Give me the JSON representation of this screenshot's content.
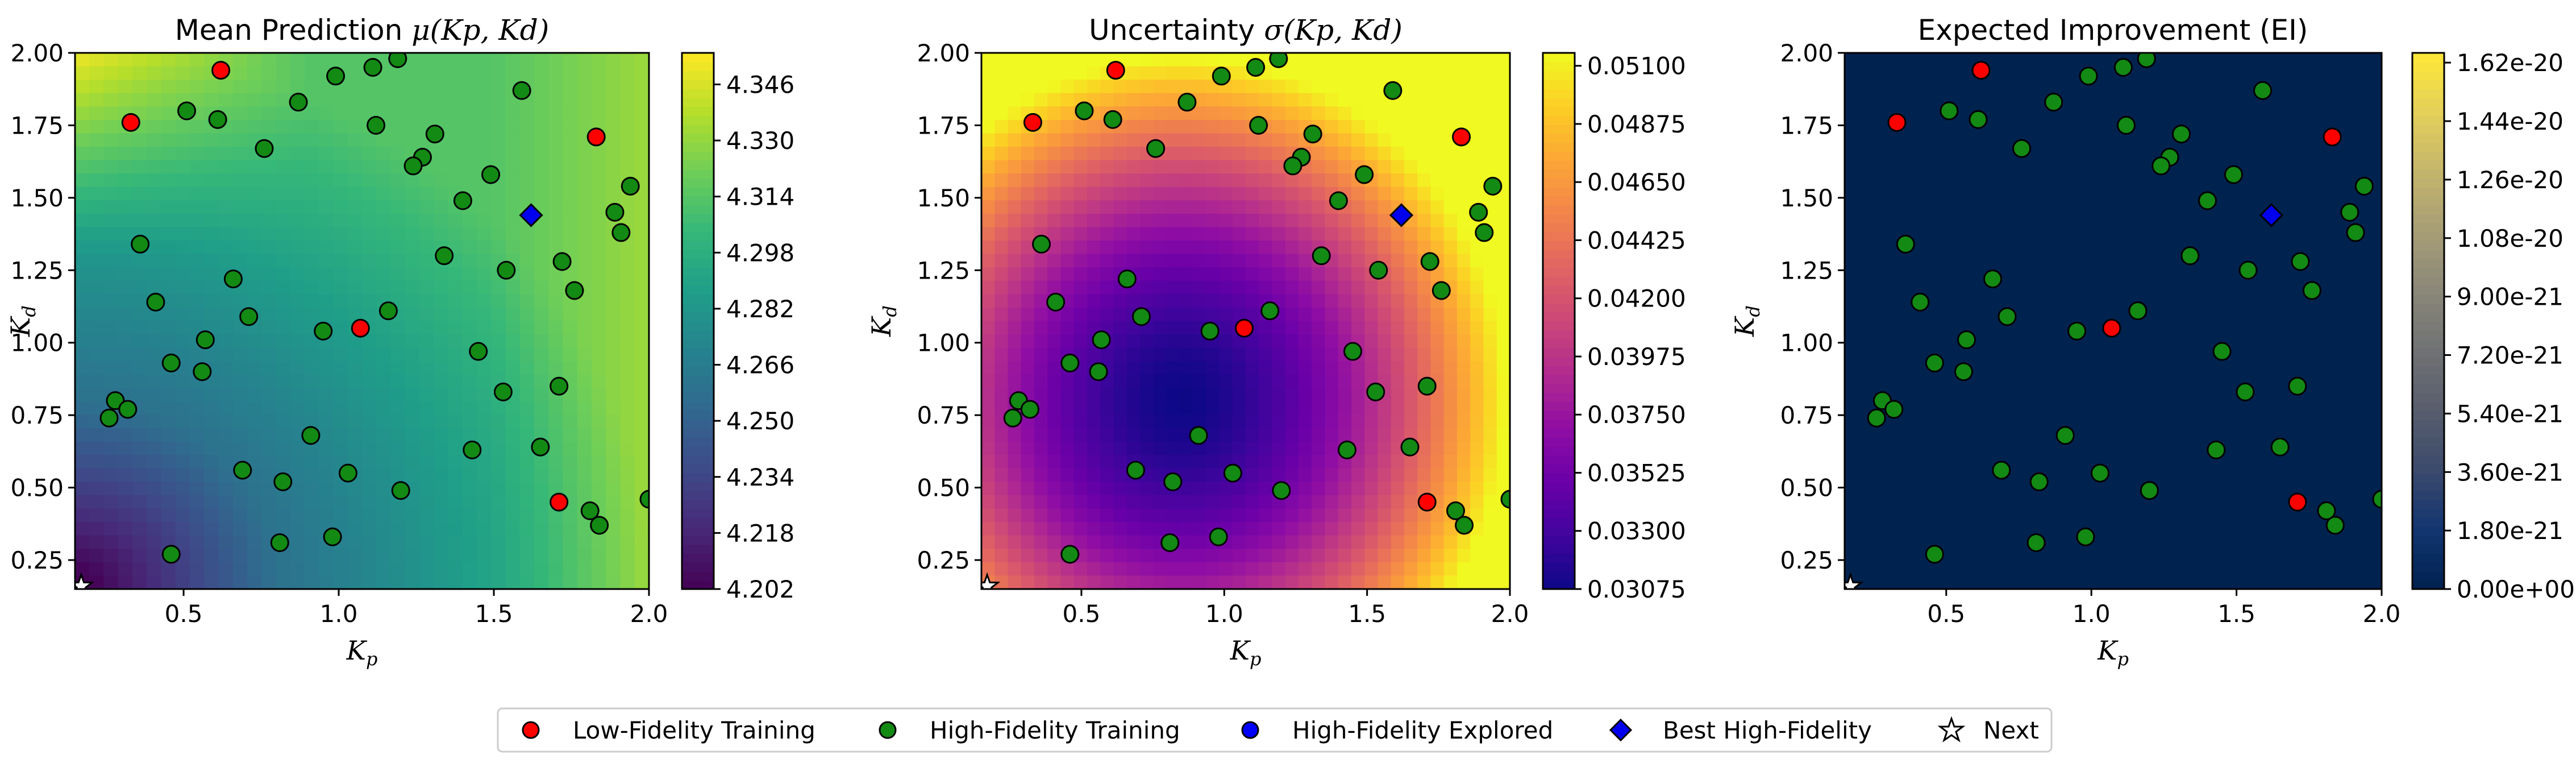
{
  "chart_data": [
    {
      "type": "heatmap",
      "title": "Mean Prediction",
      "title_math": "μ(Kp, Kd)",
      "xlabel": "K",
      "xlabel_sub": "p",
      "ylabel": "K",
      "ylabel_sub": "d",
      "xlim": [
        0.15,
        2.0
      ],
      "ylim": [
        0.15,
        2.0
      ],
      "xticks": [
        "0.5",
        "1.0",
        "1.5",
        "2.0"
      ],
      "yticks": [
        "0.25",
        "0.50",
        "0.75",
        "1.00",
        "1.25",
        "1.50",
        "1.75",
        "2.00"
      ],
      "colormap": "viridis",
      "color_range": [
        4.202,
        4.355
      ],
      "colorbar_ticks": [
        "4.202",
        "4.218",
        "4.234",
        "4.250",
        "4.266",
        "4.282",
        "4.298",
        "4.314",
        "4.330",
        "4.346"
      ],
      "grid": false
    },
    {
      "type": "heatmap",
      "title": "Uncertainty",
      "title_math": "σ(Kp, Kd)",
      "xlabel": "K",
      "xlabel_sub": "p",
      "ylabel": "K",
      "ylabel_sub": "d",
      "xlim": [
        0.15,
        2.0
      ],
      "ylim": [
        0.15,
        2.0
      ],
      "xticks": [
        "0.5",
        "1.0",
        "1.5",
        "2.0"
      ],
      "yticks": [
        "0.25",
        "0.50",
        "0.75",
        "1.00",
        "1.25",
        "1.50",
        "1.75",
        "2.00"
      ],
      "colormap": "plasma",
      "color_range": [
        0.03075,
        0.0515
      ],
      "colorbar_ticks": [
        "0.03075",
        "0.03300",
        "0.03525",
        "0.03750",
        "0.03975",
        "0.04200",
        "0.04425",
        "0.04650",
        "0.04875",
        "0.05100"
      ],
      "grid": false
    },
    {
      "type": "heatmap",
      "title": "Expected Improvement (EI)",
      "xlabel": "K",
      "xlabel_sub": "p",
      "ylabel": "K",
      "ylabel_sub": "d",
      "xlim": [
        0.15,
        2.0
      ],
      "ylim": [
        0.15,
        2.0
      ],
      "xticks": [
        "0.5",
        "1.0",
        "1.5",
        "2.0"
      ],
      "yticks": [
        "0.25",
        "0.50",
        "0.75",
        "1.00",
        "1.25",
        "1.50",
        "1.75",
        "2.00"
      ],
      "colormap": "cividis",
      "color_range": [
        0,
        1.65e-20
      ],
      "colorbar_ticks": [
        "0.00e+00",
        "1.80e-21",
        "3.60e-21",
        "5.40e-21",
        "7.20e-21",
        "9.00e-21",
        "1.08e-20",
        "1.26e-20",
        "1.44e-20",
        "1.62e-20"
      ],
      "grid": false
    }
  ],
  "points": {
    "low_fidelity": [
      [
        0.62,
        1.94
      ],
      [
        0.33,
        1.76
      ],
      [
        1.83,
        1.71
      ],
      [
        1.07,
        1.05
      ],
      [
        1.71,
        0.45
      ]
    ],
    "high_fidelity": [
      [
        1.19,
        1.98
      ],
      [
        1.11,
        1.95
      ],
      [
        0.99,
        1.92
      ],
      [
        0.87,
        1.83
      ],
      [
        0.51,
        1.8
      ],
      [
        0.61,
        1.77
      ],
      [
        1.12,
        1.75
      ],
      [
        0.76,
        1.67
      ],
      [
        1.31,
        1.72
      ],
      [
        1.27,
        1.64
      ],
      [
        1.24,
        1.61
      ],
      [
        1.59,
        1.87
      ],
      [
        1.49,
        1.58
      ],
      [
        1.94,
        1.54
      ],
      [
        1.4,
        1.49
      ],
      [
        1.89,
        1.45
      ],
      [
        1.91,
        1.38
      ],
      [
        0.36,
        1.34
      ],
      [
        1.34,
        1.3
      ],
      [
        1.72,
        1.28
      ],
      [
        1.54,
        1.25
      ],
      [
        0.66,
        1.22
      ],
      [
        1.76,
        1.18
      ],
      [
        0.41,
        1.14
      ],
      [
        1.16,
        1.11
      ],
      [
        0.71,
        1.09
      ],
      [
        0.95,
        1.04
      ],
      [
        0.57,
        1.01
      ],
      [
        1.45,
        0.97
      ],
      [
        0.46,
        0.93
      ],
      [
        0.56,
        0.9
      ],
      [
        1.71,
        0.85
      ],
      [
        1.53,
        0.83
      ],
      [
        0.28,
        0.8
      ],
      [
        0.32,
        0.77
      ],
      [
        0.26,
        0.74
      ],
      [
        0.91,
        0.68
      ],
      [
        1.43,
        0.63
      ],
      [
        1.65,
        0.64
      ],
      [
        0.69,
        0.56
      ],
      [
        1.03,
        0.55
      ],
      [
        0.82,
        0.52
      ],
      [
        1.2,
        0.49
      ],
      [
        2.0,
        0.46
      ],
      [
        1.81,
        0.42
      ],
      [
        1.84,
        0.37
      ],
      [
        0.98,
        0.33
      ],
      [
        0.81,
        0.31
      ],
      [
        0.46,
        0.27
      ]
    ],
    "best_high_fidelity": [
      1.62,
      1.44
    ],
    "next": [
      0.17,
      0.16
    ]
  },
  "legend": {
    "low_fidelity": "Low-Fidelity Training",
    "high_fidelity": "High-Fidelity Training",
    "explored": "High-Fidelity Explored",
    "best": "Best High-Fidelity",
    "next": "Next"
  },
  "colors": {
    "low_fidelity": "#ff0000",
    "high_fidelity": "#138a13",
    "explored": "#0000ff",
    "best": "#0000ee",
    "marker_edge": "#000000"
  }
}
